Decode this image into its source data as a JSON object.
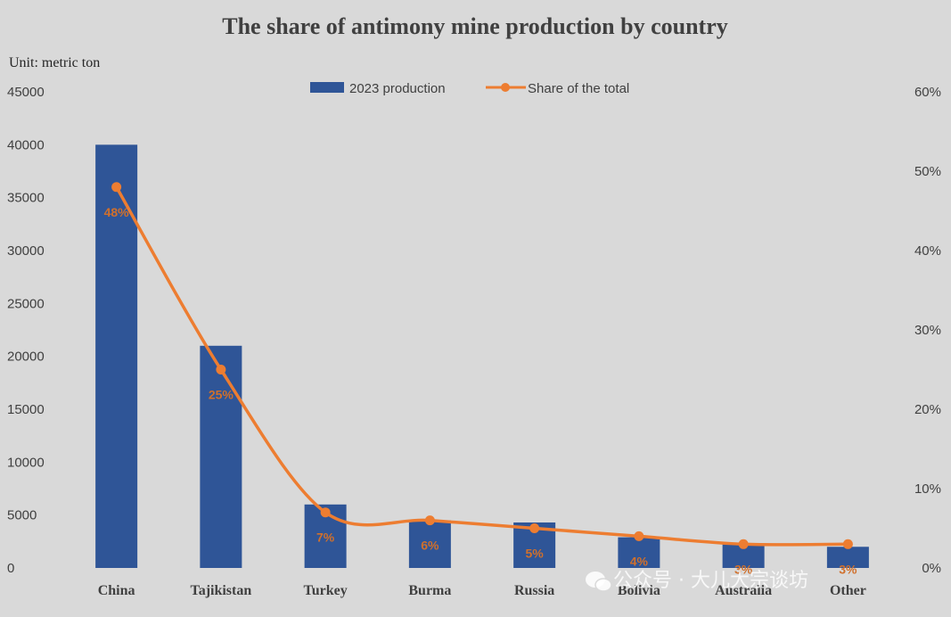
{
  "chart_data": {
    "type": "bar",
    "title": "The share of antimony mine production by country",
    "unit_label": "Unit: metric ton",
    "categories": [
      "China",
      "Tajikistan",
      "Turkey",
      "Burma",
      "Russia",
      "Bolivia",
      "Australia",
      "Other"
    ],
    "series": [
      {
        "name": "2023 production",
        "type": "bar",
        "axis": "left",
        "color": "#2f5597",
        "values": [
          40000,
          21000,
          6000,
          4500,
          4300,
          2900,
          2300,
          2000
        ]
      },
      {
        "name": "Share of the total",
        "type": "line",
        "axis": "right",
        "color": "#ed7d31",
        "values": [
          0.48,
          0.25,
          0.07,
          0.06,
          0.05,
          0.04,
          0.03,
          0.03
        ],
        "data_labels": [
          "48%",
          "25%",
          "7%",
          "6%",
          "5%",
          "4%",
          "3%",
          "3%"
        ]
      }
    ],
    "left_axis": {
      "min": 0,
      "max": 45000,
      "ticks": [
        "0",
        "5000",
        "10000",
        "15000",
        "20000",
        "25000",
        "30000",
        "35000",
        "40000",
        "45000"
      ]
    },
    "right_axis": {
      "min": 0,
      "max": 0.6,
      "ticks": [
        "0%",
        "10%",
        "20%",
        "30%",
        "40%",
        "50%",
        "60%"
      ]
    },
    "legend_position": "top-center",
    "grid": false
  },
  "watermark": {
    "text": "公众号 · 大儿大宗谈坊",
    "icon": "wechat-icon"
  }
}
